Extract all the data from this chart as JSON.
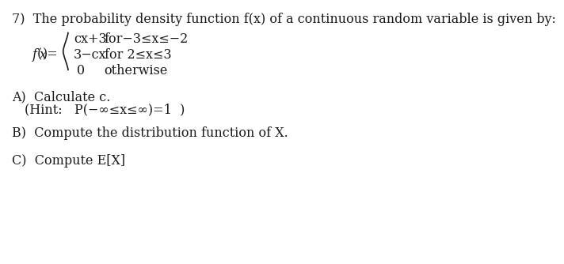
{
  "title": "7)  The probability density function f(x) of a continuous random variable is given by:",
  "fx_label": "f(x)=",
  "line1_expr": "cx+3",
  "line1_cond": "for−3≤x≤−2",
  "line2_expr": "3−cx",
  "line2_cond": "for 2≤x≤3",
  "line3_expr": "0",
  "line3_cond": "otherwise",
  "partA": "A)  Calculate c.",
  "partA_hint": "(Hint:   P(−∞≤x≤∞)=1  )",
  "partB": "B)  Compute the distribution function of X.",
  "partC": "C)  Compute E[X]",
  "bg_color": "#ffffff",
  "text_color": "#1a1a1a",
  "font_size": 11.5,
  "serif_font": "DejaVu Serif"
}
